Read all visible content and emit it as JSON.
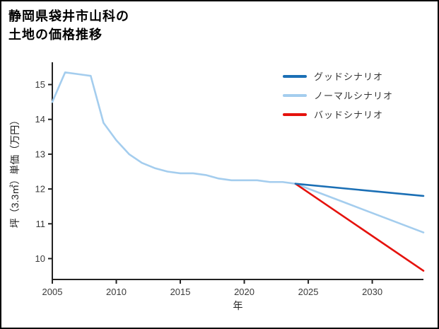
{
  "title": {
    "line1": "静岡県袋井市山科の",
    "line2": "土地の価格推移"
  },
  "chart_data": {
    "type": "line",
    "title": "静岡県袋井市山科の土地の価格推移",
    "xlabel": "年",
    "ylabel": "坪（3.3㎡）単価（万円）",
    "xlim": [
      2005,
      2034
    ],
    "ylim": [
      9.4,
      15.6
    ],
    "xticks": [
      2005,
      2010,
      2015,
      2020,
      2025,
      2030
    ],
    "yticks": [
      10,
      11,
      12,
      13,
      14,
      15
    ],
    "grid": false,
    "legend_position": "top-right",
    "axis_color": "#222222",
    "series": [
      {
        "name": "グッドシナリオ",
        "color": "#1b6fb5",
        "x": [
          2024,
          2034
        ],
        "y": [
          12.15,
          11.8
        ]
      },
      {
        "name": "ノーマルシナリオ",
        "color": "#a4cdee",
        "x": [
          2005,
          2006,
          2007,
          2008,
          2009,
          2010,
          2011,
          2012,
          2013,
          2014,
          2015,
          2016,
          2017,
          2018,
          2019,
          2020,
          2021,
          2022,
          2023,
          2024,
          2025,
          2026,
          2027,
          2028,
          2029,
          2030,
          2031,
          2032,
          2033,
          2034
        ],
        "y": [
          14.5,
          15.35,
          15.3,
          15.25,
          13.9,
          13.4,
          13.0,
          12.75,
          12.6,
          12.5,
          12.45,
          12.45,
          12.4,
          12.3,
          12.25,
          12.25,
          12.25,
          12.2,
          12.2,
          12.15,
          12.01,
          11.87,
          11.73,
          11.59,
          11.45,
          11.31,
          11.17,
          11.03,
          10.89,
          10.75
        ]
      },
      {
        "name": "バッドシナリオ",
        "color": "#e5120d",
        "x": [
          2024,
          2034
        ],
        "y": [
          12.15,
          9.65
        ]
      }
    ]
  }
}
